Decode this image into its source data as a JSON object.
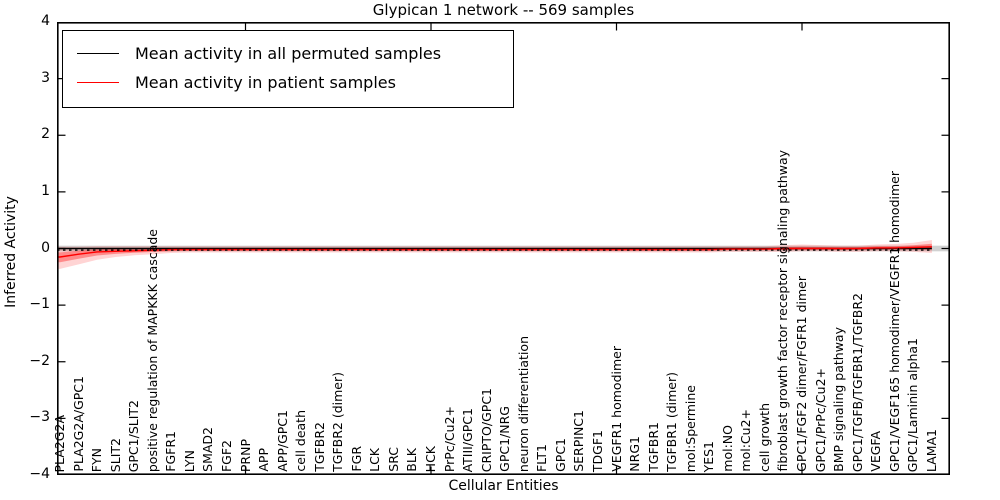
{
  "figure": {
    "title": "Glypican 1 network -- 569 samples",
    "xlabel": "Cellular Entities",
    "ylabel": "Inferred Activity"
  },
  "chart_data": {
    "type": "line",
    "title": "Glypican 1 network -- 569 samples",
    "xlabel": "Cellular Entities",
    "ylabel": "Inferred Activity",
    "ylim": [
      -4,
      4
    ],
    "grid": false,
    "legend_position": "upper left",
    "ytick_labels": [
      "4",
      "3",
      "2",
      "1",
      "0",
      "−1",
      "−2",
      "−3",
      "−4"
    ],
    "xtick_indices": [
      10,
      20,
      30,
      40
    ],
    "categories": [
      "PLA2G2A",
      "PLA2G2A/GPC1",
      "FYN",
      "SLIT2",
      "GPC1/SLIT2",
      "positive regulation of MAPKKK cascade",
      "FGFR1",
      "LYN",
      "SMAD2",
      "FGF2",
      "PRNP",
      "APP",
      "APP/GPC1",
      "cell death",
      "TGFBR2",
      "TGFBR2 (dimer)",
      "FGR",
      "LCK",
      "SRC",
      "BLK",
      "HCK",
      "PrPc/Cu2+",
      "ATIII/GPC1",
      "CRIPTO/GPC1",
      "GPC1/NRG",
      "neuron differentiation",
      "FLT1",
      "GPC1",
      "SERPINC1",
      "TDGF1",
      "VEGFR1 homodimer",
      "NRG1",
      "TGFBR1",
      "TGFBR1 (dimer)",
      "mol:Spermine",
      "YES1",
      "mol:NO",
      "mol:Cu2+",
      "cell growth",
      "fibroblast growth factor receptor signaling pathway",
      "GPC1/FGF2 dimer/FGFR1 dimer",
      "GPC1/PrPc/Cu2+",
      "BMP signaling pathway",
      "GPC1/TGFB/TGFBR1/TGFBR2",
      "VEGFA",
      "GPC1/VEGF165 homodimer/VEGFR1 homodimer",
      "GPC1/Laminin alpha1",
      "LAMA1"
    ],
    "series": [
      {
        "name": "Mean activity in all permuted samples",
        "color": "#000000",
        "band_halfwidth": 0.05,
        "values": [
          0,
          0,
          0,
          0,
          0,
          0,
          0,
          0,
          0,
          0,
          0,
          0,
          0,
          0,
          0,
          0,
          0,
          0,
          0,
          0,
          0,
          0,
          0,
          0,
          0,
          0,
          0,
          0,
          0,
          0,
          0,
          0,
          0,
          0,
          0,
          0,
          0,
          0,
          0,
          0,
          0,
          0,
          0,
          0,
          0,
          0,
          0,
          0
        ]
      },
      {
        "name": "Mean activity in patient samples",
        "color": "#ff0000",
        "values": [
          -0.15,
          -0.1,
          -0.06,
          -0.05,
          -0.04,
          -0.03,
          -0.02,
          -0.02,
          -0.02,
          -0.02,
          -0.02,
          -0.02,
          -0.02,
          -0.02,
          -0.02,
          -0.02,
          -0.02,
          -0.02,
          -0.02,
          -0.02,
          -0.02,
          -0.02,
          -0.02,
          -0.02,
          -0.02,
          -0.02,
          -0.02,
          -0.02,
          -0.02,
          -0.02,
          -0.02,
          -0.02,
          -0.02,
          -0.02,
          -0.02,
          -0.02,
          -0.01,
          -0.01,
          -0.01,
          0.0,
          0.0,
          0.0,
          0.0,
          0.0,
          0.01,
          0.01,
          0.02,
          0.03
        ],
        "band_lower": [
          -0.36,
          -0.28,
          -0.2,
          -0.15,
          -0.12,
          -0.1,
          -0.08,
          -0.07,
          -0.07,
          -0.07,
          -0.07,
          -0.07,
          -0.07,
          -0.07,
          -0.07,
          -0.07,
          -0.07,
          -0.07,
          -0.07,
          -0.07,
          -0.07,
          -0.07,
          -0.07,
          -0.07,
          -0.07,
          -0.07,
          -0.07,
          -0.07,
          -0.07,
          -0.07,
          -0.07,
          -0.07,
          -0.07,
          -0.07,
          -0.07,
          -0.07,
          -0.06,
          -0.06,
          -0.06,
          -0.06,
          -0.05,
          -0.05,
          -0.06,
          -0.06,
          -0.05,
          -0.05,
          -0.06,
          -0.08
        ],
        "band_upper": [
          0.03,
          0.03,
          0.04,
          0.04,
          0.04,
          0.04,
          0.04,
          0.04,
          0.04,
          0.04,
          0.04,
          0.04,
          0.04,
          0.04,
          0.04,
          0.04,
          0.04,
          0.04,
          0.04,
          0.04,
          0.04,
          0.04,
          0.04,
          0.04,
          0.04,
          0.04,
          0.04,
          0.04,
          0.04,
          0.04,
          0.04,
          0.04,
          0.04,
          0.04,
          0.04,
          0.04,
          0.04,
          0.04,
          0.04,
          0.06,
          0.07,
          0.06,
          0.05,
          0.05,
          0.07,
          0.08,
          0.1,
          0.15
        ]
      }
    ]
  }
}
